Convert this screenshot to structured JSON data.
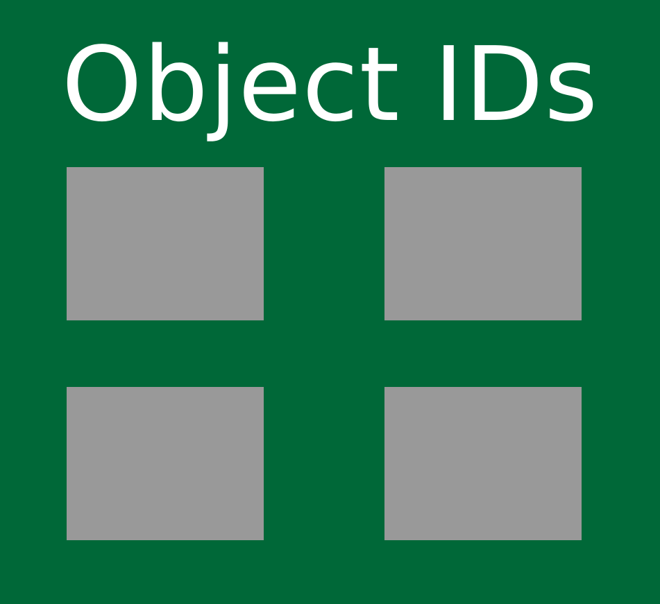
{
  "title": "Object IDs",
  "colors": {
    "background": "#006838",
    "title_text": "#ffffff",
    "tile": "#999999"
  },
  "tiles": [
    {
      "name": "top-left"
    },
    {
      "name": "top-right"
    },
    {
      "name": "bottom-left"
    },
    {
      "name": "bottom-right"
    }
  ]
}
